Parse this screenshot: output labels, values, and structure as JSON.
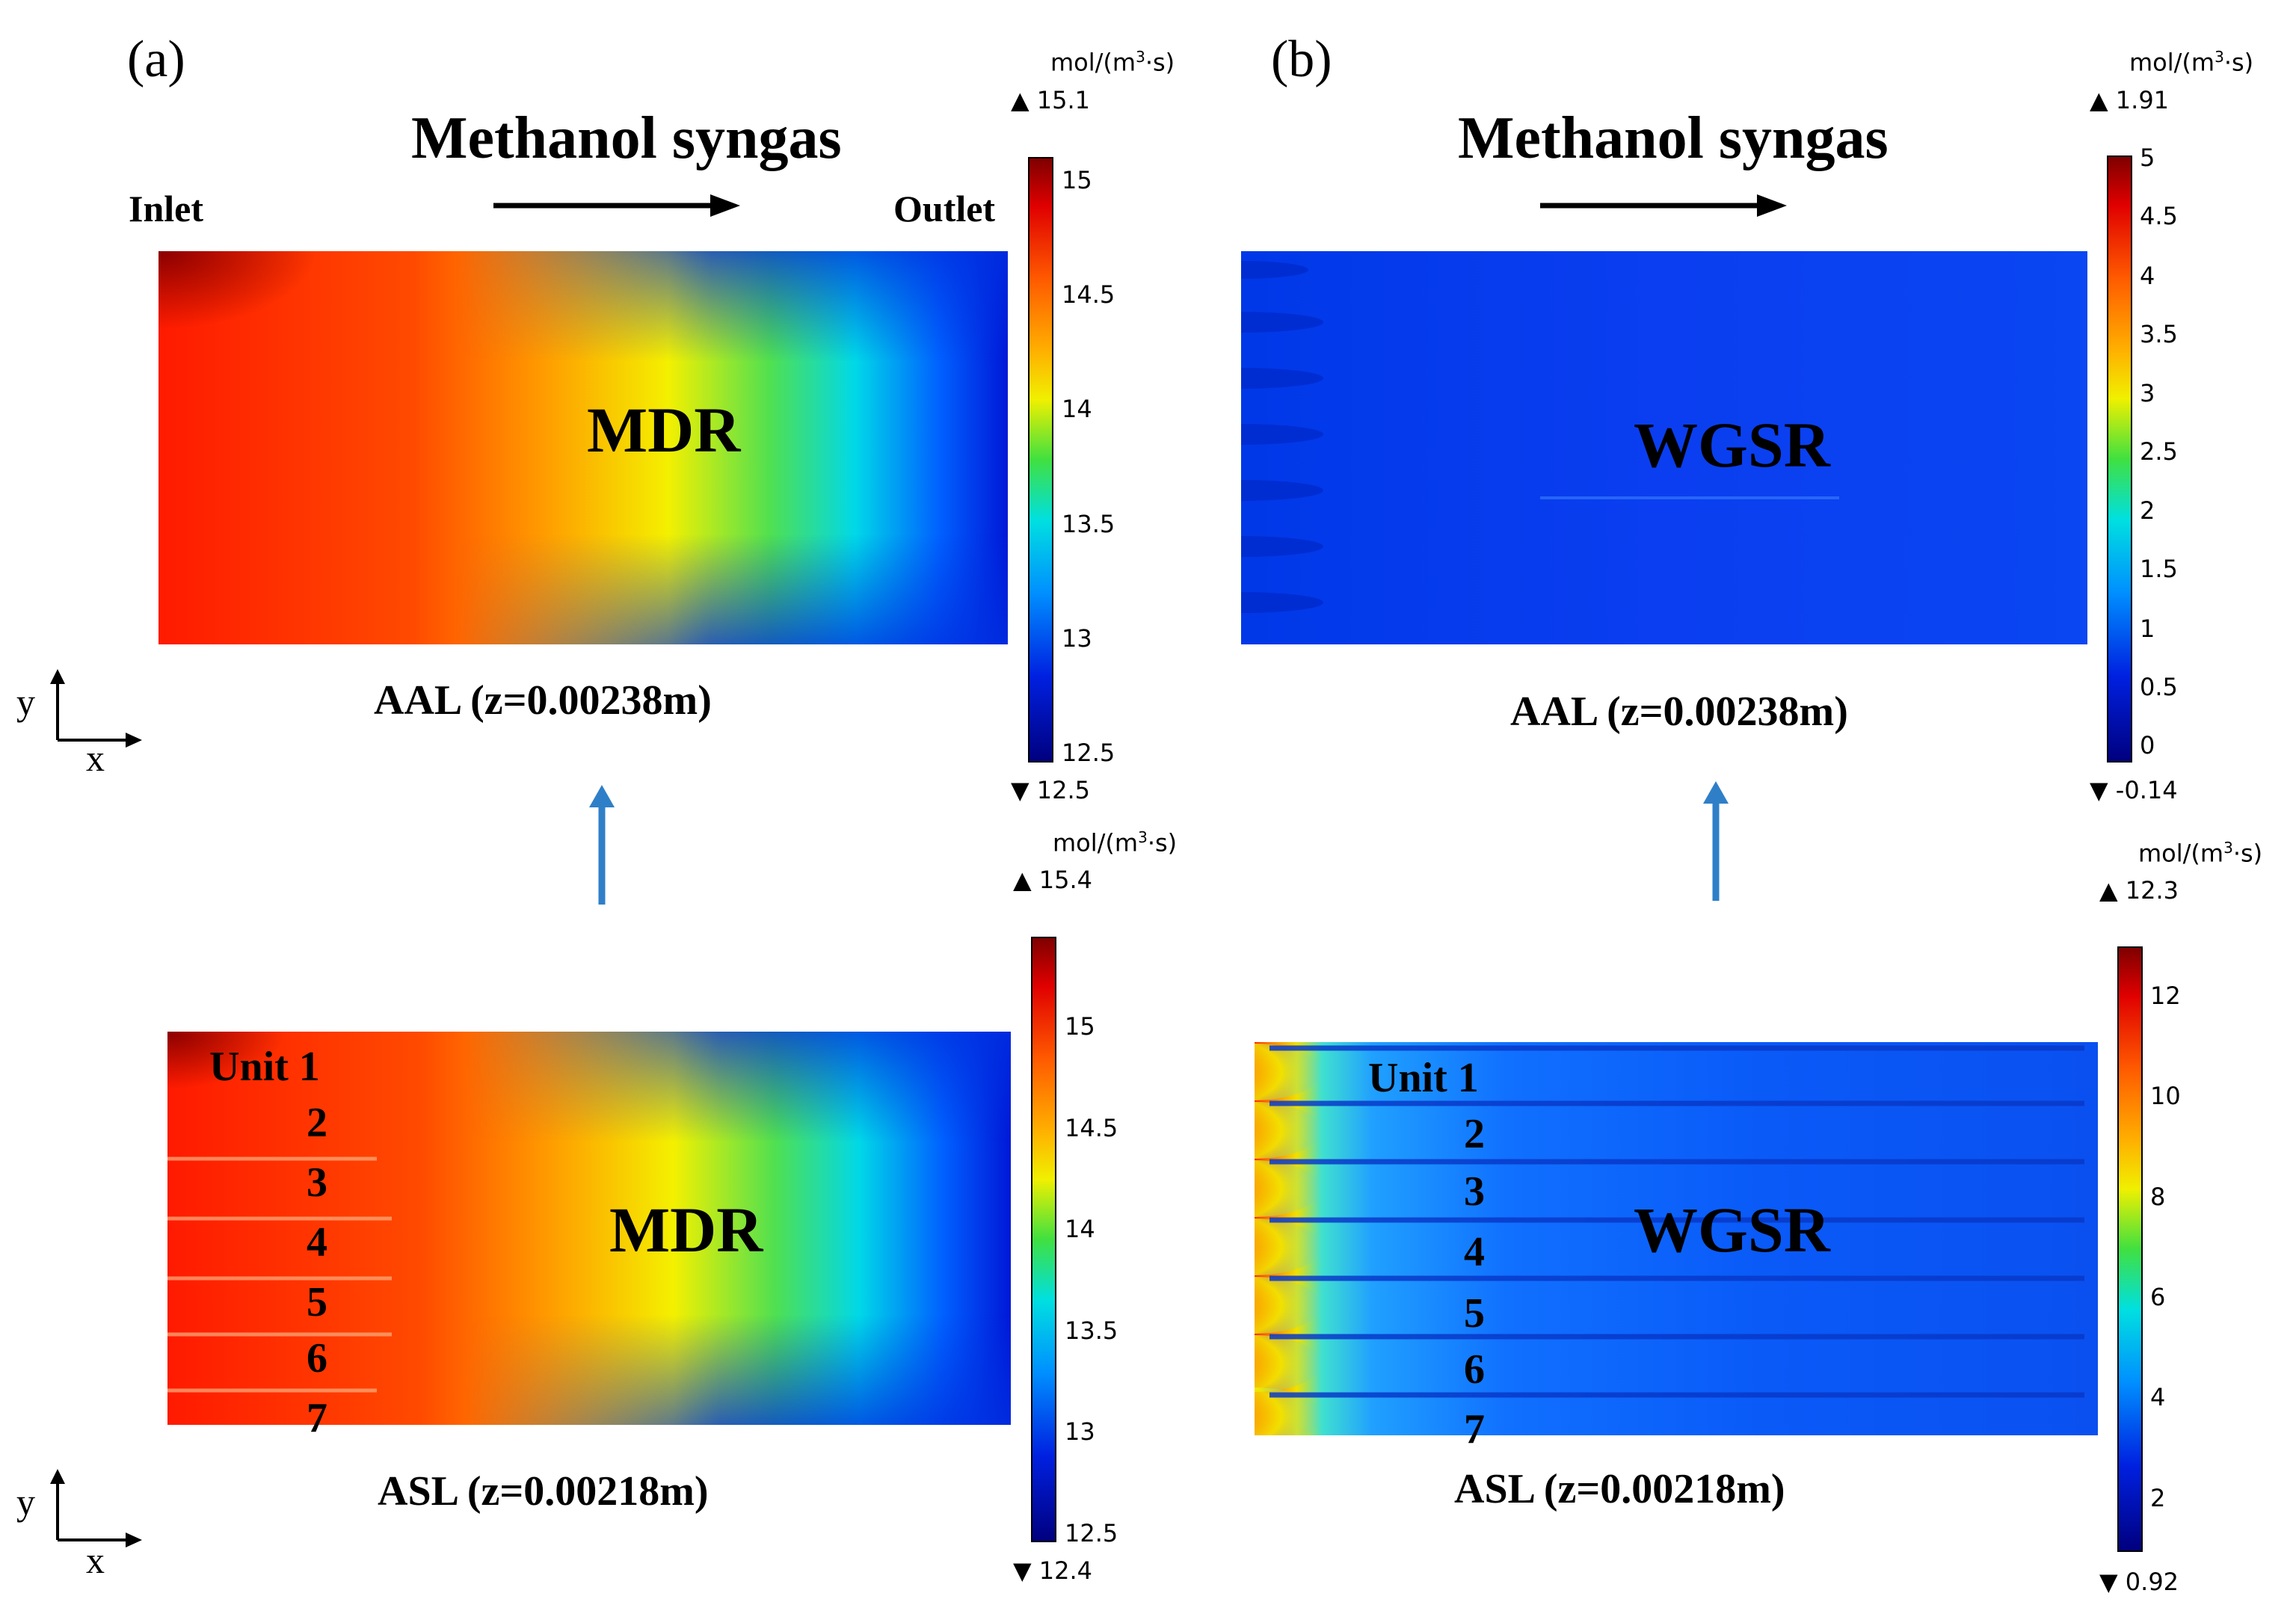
{
  "panels": {
    "a": {
      "label": "(a)",
      "title": "Methanol syngas",
      "inlet": "Inlet",
      "outlet": "Outlet",
      "top_reaction": "MDR",
      "bottom_reaction": "MDR",
      "top_caption": "AAL (z=0.00238m)",
      "bottom_caption": "ASL (z=0.00218m)",
      "units": [
        "Unit 1",
        "2",
        "3",
        "4",
        "5",
        "6",
        "7"
      ],
      "top_colorbar": {
        "unit": "mol/(m",
        "unit_sup": "3",
        "unit_tail": "·s)",
        "max": "15.1",
        "min": "12.5",
        "ticks": [
          "15",
          "14.5",
          "14",
          "13.5",
          "13",
          "12.5"
        ]
      },
      "bottom_colorbar": {
        "unit": "mol/(m",
        "unit_sup": "3",
        "unit_tail": "·s)",
        "max": "15.4",
        "min": "12.4",
        "ticks": [
          "15",
          "14.5",
          "14",
          "13.5",
          "13",
          "12.5"
        ]
      }
    },
    "b": {
      "label": "(b)",
      "title": "Methanol syngas",
      "top_reaction": "WGSR",
      "bottom_reaction": "WGSR",
      "top_caption": "AAL (z=0.00238m)",
      "bottom_caption": "ASL (z=0.00218m)",
      "units": [
        "Unit 1",
        "2",
        "3",
        "4",
        "5",
        "6",
        "7"
      ],
      "top_colorbar": {
        "unit": "mol/(m",
        "unit_sup": "3",
        "unit_tail": "·s)",
        "max": "1.91",
        "min": "-0.14",
        "ticks": [
          "5",
          "4.5",
          "4",
          "3.5",
          "3",
          "2.5",
          "2",
          "1.5",
          "1",
          "0.5",
          "0"
        ]
      },
      "bottom_colorbar": {
        "unit": "mol/(m",
        "unit_sup": "3",
        "unit_tail": "·s)",
        "max": "12.3",
        "min": "0.92",
        "ticks": [
          "12",
          "10",
          "8",
          "6",
          "4",
          "2"
        ]
      }
    }
  },
  "axes": {
    "x": "x",
    "y": "y"
  },
  "colors": {
    "arrow": "#2f7fc8",
    "rainbow_top": "#7f0000",
    "rainbow_bottom": "#00007f"
  }
}
